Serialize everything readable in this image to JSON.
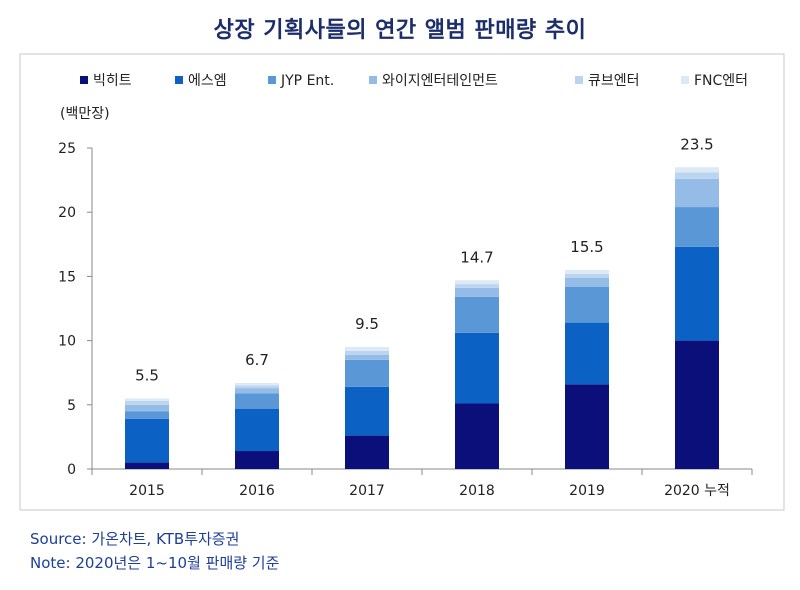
{
  "title": "상장 기획사들의 연간 앨범 판매량 추이",
  "chart_data": {
    "type": "bar",
    "stacked": true,
    "unit_label": "(백만장)",
    "categories": [
      "2015",
      "2016",
      "2017",
      "2018",
      "2019",
      "2020 누적"
    ],
    "totals": [
      "5.5",
      "6.7",
      "9.5",
      "14.7",
      "15.5",
      "23.5"
    ],
    "ylim": [
      0,
      25
    ],
    "yticks": [
      0,
      5,
      10,
      15,
      20,
      25
    ],
    "legend_position": "top",
    "grid": false,
    "series": [
      {
        "name": "빅히트",
        "color": "#0a0f7a",
        "values": [
          0.5,
          1.4,
          2.6,
          5.1,
          6.6,
          10.0
        ]
      },
      {
        "name": "에스엠",
        "color": "#0b62c4",
        "values": [
          3.4,
          3.3,
          3.8,
          5.5,
          4.8,
          7.3
        ]
      },
      {
        "name": "JYP Ent.",
        "color": "#5a97d7",
        "values": [
          0.6,
          1.2,
          2.1,
          2.8,
          2.8,
          3.1
        ]
      },
      {
        "name": "와이지엔터테인먼트",
        "color": "#95bce6",
        "values": [
          0.5,
          0.4,
          0.4,
          0.7,
          0.7,
          2.2
        ]
      },
      {
        "name": "큐브엔터",
        "color": "#bcd5ef",
        "values": [
          0.3,
          0.2,
          0.3,
          0.3,
          0.3,
          0.5
        ]
      },
      {
        "name": "FNC엔터",
        "color": "#dce9f7",
        "values": [
          0.2,
          0.2,
          0.3,
          0.3,
          0.3,
          0.4
        ]
      }
    ]
  },
  "footer": {
    "source": "Source: 가온차트, KTB투자증권",
    "note": "Note: 2020년은 1~10월 판매량 기준"
  }
}
